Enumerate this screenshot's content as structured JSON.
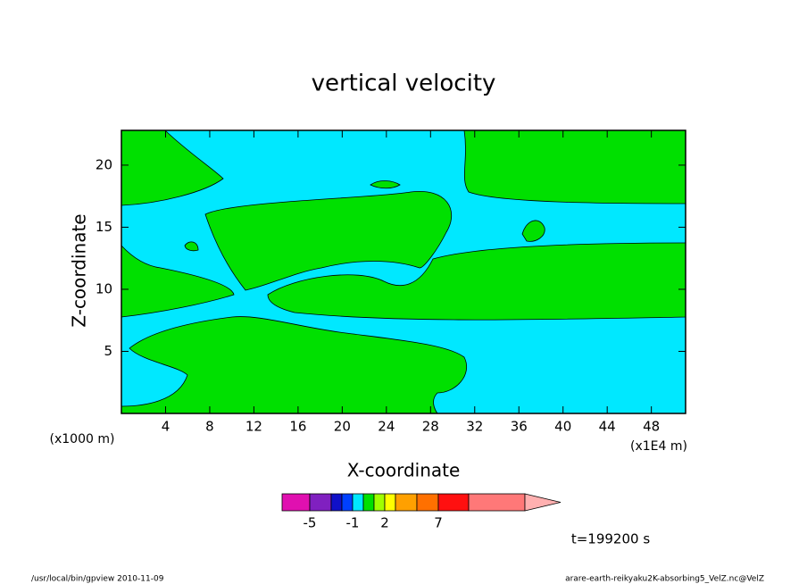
{
  "chart_data": {
    "type": "contour",
    "title": "vertical velocity",
    "x_label": "X-coordinate",
    "y_label": "Z-coordinate",
    "x_unit": "(x1E4 m)",
    "y_unit": "(x1000 m)",
    "xlim": [
      0,
      51.1
    ],
    "ylim": [
      0,
      22.8
    ],
    "xticks": [
      4,
      8,
      12,
      16,
      20,
      24,
      28,
      32,
      36,
      40,
      44,
      48
    ],
    "yticks": [
      5,
      10,
      15,
      20
    ],
    "colorbar": {
      "levels": [
        -6,
        -5,
        -3,
        -2,
        -1,
        0,
        1,
        2,
        3,
        5,
        7,
        10,
        20
      ],
      "colors": [
        "#e010b0",
        "#8020c0",
        "#1010c8",
        "#0040ff",
        "#00e8ff",
        "#00e000",
        "#a0ff00",
        "#ffff00",
        "#ffa000",
        "#ff7000",
        "#ff1010",
        "#ff7878",
        "#ffb0b0"
      ],
      "ticks": [
        -5,
        -1,
        2,
        7
      ]
    },
    "time_label": "t=199200 s",
    "footer_left": "/usr/local/bin/gpview  2010-11-09",
    "footer_right": "arare-earth-reikyaku2K-absorbing5_VelZ.nc@VelZ"
  }
}
